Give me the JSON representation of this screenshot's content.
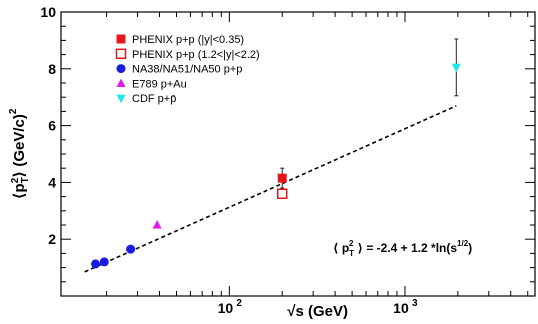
{
  "chart_data": {
    "type": "scatter",
    "title": "",
    "xlabel": "√s (GeV)",
    "ylabel": "⟨p_T²⟩ (GeV/c)²",
    "x_scale": "log",
    "xlim": [
      11,
      5500
    ],
    "ylim": [
      0,
      10
    ],
    "x_ticks": [
      {
        "value": 100,
        "label": "10",
        "exp": "2"
      },
      {
        "value": 1000,
        "label": "10",
        "exp": "3"
      }
    ],
    "y_ticks": [
      {
        "value": 2,
        "label": "2"
      },
      {
        "value": 4,
        "label": "4"
      },
      {
        "value": 6,
        "label": "6"
      },
      {
        "value": 8,
        "label": "8"
      },
      {
        "value": 10,
        "label": "10"
      }
    ],
    "legend_position": "top-left",
    "series": [
      {
        "name": "PHENIX p+p (|y|<0.35)",
        "marker": "square",
        "filled": true,
        "color": "#e8141b",
        "points": [
          {
            "x": 200,
            "y": 4.15,
            "err": 0.35
          }
        ]
      },
      {
        "name": "PHENIX p+p (1.2<|y|<2.2)",
        "marker": "square",
        "filled": false,
        "color": "#e8141b",
        "points": [
          {
            "x": 200,
            "y": 3.6,
            "err": 0
          }
        ]
      },
      {
        "name": "NA38/NA51/NA50 p+p",
        "marker": "circle",
        "filled": true,
        "color": "#1a1ae0",
        "points": [
          {
            "x": 17.3,
            "y": 1.13
          },
          {
            "x": 19.4,
            "y": 1.2
          },
          {
            "x": 27.4,
            "y": 1.65
          }
        ]
      },
      {
        "name": "E789 p+Au",
        "marker": "triangle-up",
        "filled": true,
        "color": "#e61ce6",
        "points": [
          {
            "x": 38.8,
            "y": 2.5
          }
        ]
      },
      {
        "name": "CDF p+p̄",
        "marker": "triangle-down",
        "filled": true,
        "color": "#1ee6f2",
        "points": [
          {
            "x": 1960,
            "y": 8.05,
            "err": 1.0
          }
        ]
      }
    ],
    "fit": {
      "formula": "-2.4 + 1.2*ln(s^(1/2))",
      "intercept": -2.4,
      "slope": 1.2,
      "x_range": [
        15,
        1960
      ],
      "style": "dashed"
    },
    "annotation": {
      "prefix": "⟨ p",
      "sub": "T",
      "sup": "2",
      "mid": "⟩ = -2.4 + 1.2 *ln(s",
      "exp": "1/2",
      "suffix": ")"
    }
  },
  "colors": {
    "phenix": "#e8141b",
    "na": "#1a1ae0",
    "e789": "#e61ce6",
    "cdf": "#1ee6f2"
  }
}
